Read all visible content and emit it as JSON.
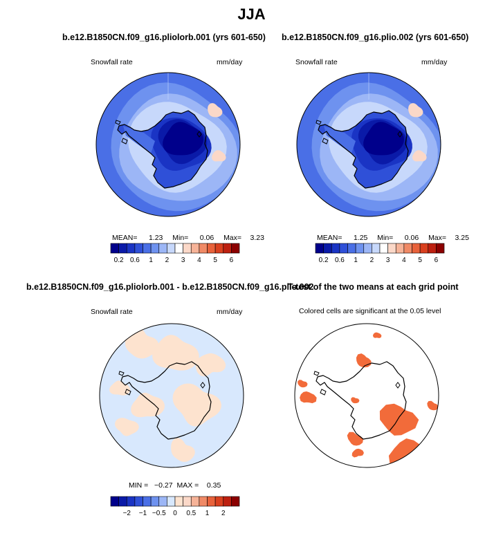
{
  "header": {
    "title": "JJA"
  },
  "panels": {
    "p1": {
      "title": "b.e12.B1850CN.f09_g16.pliolorb.001 (yrs 601-650)",
      "left_label": "Snowfall rate",
      "right_label": "mm/day",
      "mean_label": "MEAN=",
      "mean_value": "1.23",
      "min_label": "Min=",
      "min_value": "0.06",
      "max_label": "Max=",
      "max_value": "3.23"
    },
    "p2": {
      "title": "b.e12.B1850CN.f09_g16.plio.002 (yrs 601-650)",
      "left_label": "Snowfall rate",
      "right_label": "mm/day",
      "mean_label": "MEAN=",
      "mean_value": "1.25",
      "min_label": "Min=",
      "min_value": "0.06",
      "max_label": "Max=",
      "max_value": "3.25"
    },
    "p3": {
      "title": "b.e12.B1850CN.f09_g16.pliolorb.001 - b.e12.B1850CN.f09_g16.plio.002",
      "left_label": "Snowfall rate",
      "right_label": "mm/day",
      "stats_text": "MIN =   −0.27  MAX =    0.35"
    },
    "p4": {
      "title": "T-test of the two means at each grid point",
      "subtitle": "Colored cells are significant at the 0.05 level"
    }
  },
  "chart_data": [
    {
      "type": "heatmap",
      "projection": "south-polar-stereographic",
      "title": "b.e12.B1850CN.f09_g16.pliolorb.001 (yrs 601-650)",
      "variable": "Snowfall rate",
      "units": "mm/day",
      "mean": 1.23,
      "min": 0.06,
      "max": 3.23,
      "colorbar": {
        "levels": [
          0.2,
          0.4,
          0.6,
          0.8,
          1,
          1.5,
          2,
          2.5,
          3,
          3.5,
          4,
          4.5,
          5,
          5.5,
          6
        ],
        "tick_labels": [
          "0.2",
          "0.6",
          "1",
          "2",
          "3",
          "4",
          "5",
          "6"
        ],
        "colors": [
          "#00008b",
          "#0a1aa8",
          "#1a34c4",
          "#2f50d8",
          "#4a6fe6",
          "#6e92ef",
          "#9cb6f6",
          "#c7d8fb",
          "#ffffff",
          "#fbd8c8",
          "#f6b398",
          "#f08a66",
          "#e8623b",
          "#d9401f",
          "#bd2010",
          "#8b0000"
        ]
      }
    },
    {
      "type": "heatmap",
      "projection": "south-polar-stereographic",
      "title": "b.e12.B1850CN.f09_g16.plio.002 (yrs 601-650)",
      "variable": "Snowfall rate",
      "units": "mm/day",
      "mean": 1.25,
      "min": 0.06,
      "max": 3.25,
      "colorbar": {
        "levels": [
          0.2,
          0.4,
          0.6,
          0.8,
          1,
          1.5,
          2,
          2.5,
          3,
          3.5,
          4,
          4.5,
          5,
          5.5,
          6
        ],
        "tick_labels": [
          "0.2",
          "0.6",
          "1",
          "2",
          "3",
          "4",
          "5",
          "6"
        ],
        "colors": [
          "#00008b",
          "#0a1aa8",
          "#1a34c4",
          "#2f50d8",
          "#4a6fe6",
          "#6e92ef",
          "#9cb6f6",
          "#c7d8fb",
          "#ffffff",
          "#fbd8c8",
          "#f6b398",
          "#f08a66",
          "#e8623b",
          "#d9401f",
          "#bd2010",
          "#8b0000"
        ]
      }
    },
    {
      "type": "heatmap",
      "projection": "south-polar-stereographic",
      "title": "b.e12.B1850CN.f09_g16.pliolorb.001 - b.e12.B1850CN.f09_g16.plio.002",
      "variable": "Snowfall rate",
      "units": "mm/day",
      "min": -0.27,
      "max": 0.35,
      "colorbar": {
        "levels": [
          -2.5,
          -2,
          -1.5,
          -1,
          -0.75,
          -0.5,
          -0.25,
          0,
          0.25,
          0.5,
          0.75,
          1,
          1.5,
          2,
          2.5
        ],
        "tick_labels": [
          "−2",
          "−1",
          "−0.5",
          "0",
          "0.5",
          "1",
          "2"
        ],
        "colors": [
          "#00008b",
          "#0a1aa8",
          "#1a34c4",
          "#2f50d8",
          "#4a6fe6",
          "#6e92ef",
          "#9cb6f6",
          "#d8e8fd",
          "#fde3cf",
          "#fbd8c8",
          "#f6b398",
          "#f08a66",
          "#e8623b",
          "#d9401f",
          "#bd2010",
          "#8b0000"
        ]
      }
    },
    {
      "type": "heatmap",
      "projection": "south-polar-stereographic",
      "title": "T-test of the two means at each grid point",
      "annotation": "Colored cells are significant at the 0.05 level",
      "significant_color": "#f26b3a"
    }
  ]
}
